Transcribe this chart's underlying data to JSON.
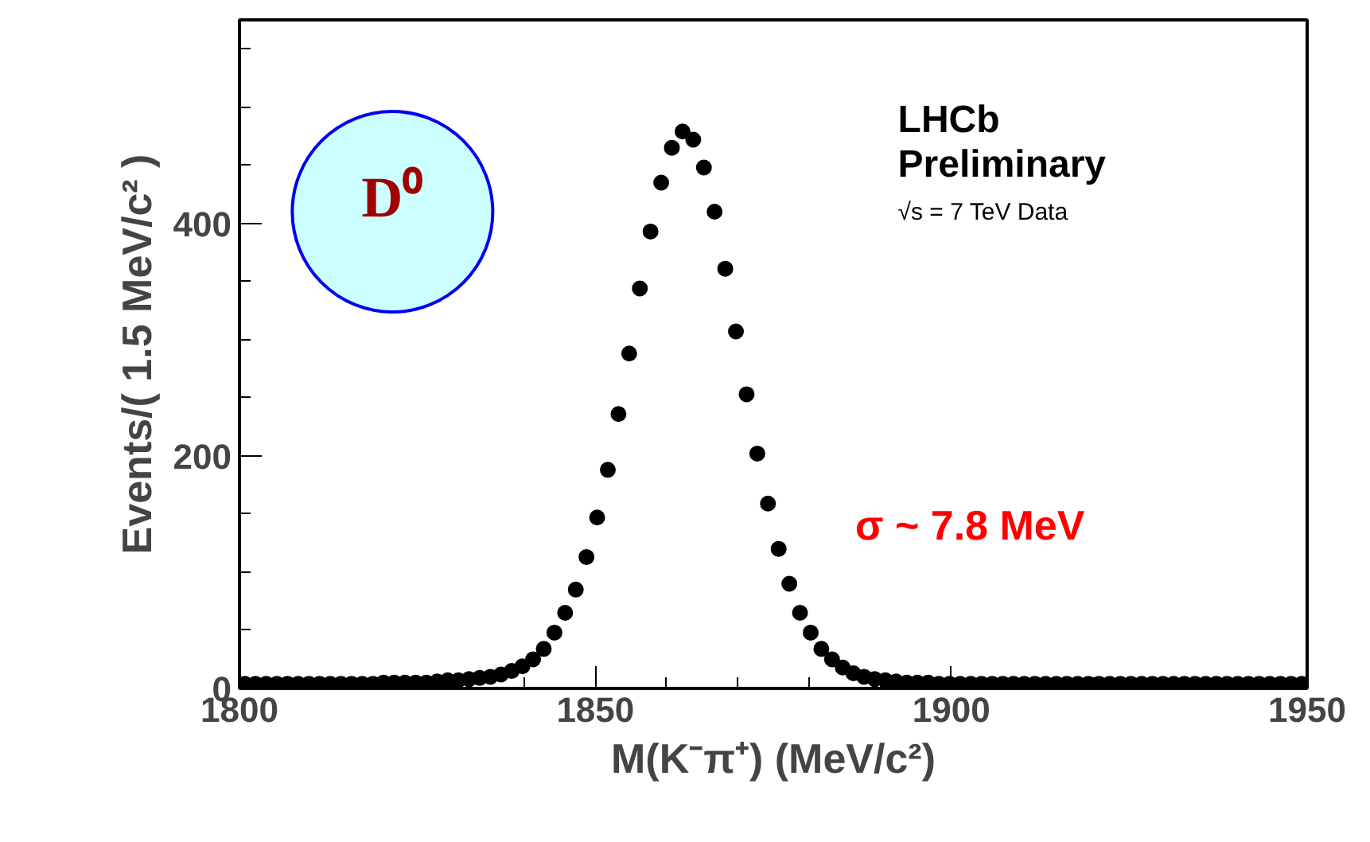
{
  "chart_data": {
    "type": "scatter",
    "xlabel": "M(K⁻π⁺) (MeV/c²)",
    "ylabel": "Events/( 1.5 MeV/c² )",
    "annotations": [
      "LHCb",
      "Preliminary",
      "√s = 7 TeV Data",
      "σ ~ 7.8 MeV",
      "D⁰"
    ],
    "x": [
      1800.75,
      1802.25,
      1803.75,
      1805.25,
      1806.75,
      1808.25,
      1809.75,
      1811.25,
      1812.75,
      1814.25,
      1815.75,
      1817.25,
      1818.75,
      1820.25,
      1821.75,
      1823.25,
      1824.75,
      1826.25,
      1827.75,
      1829.25,
      1830.75,
      1832.25,
      1833.75,
      1835.25,
      1836.75,
      1838.25,
      1839.75,
      1841.25,
      1842.75,
      1844.25,
      1845.75,
      1847.25,
      1848.75,
      1850.25,
      1851.75,
      1853.25,
      1854.75,
      1856.25,
      1857.75,
      1859.25,
      1860.75,
      1862.25,
      1863.75,
      1865.25,
      1866.75,
      1868.25,
      1869.75,
      1871.25,
      1872.75,
      1874.25,
      1875.75,
      1877.25,
      1878.75,
      1880.25,
      1881.75,
      1883.25,
      1884.75,
      1886.25,
      1887.75,
      1889.25,
      1890.75,
      1892.25,
      1893.75,
      1895.25,
      1896.75,
      1898.25,
      1899.75,
      1901.25,
      1902.75,
      1904.25,
      1905.75,
      1907.25,
      1908.75,
      1910.25,
      1911.75,
      1913.25,
      1914.75,
      1916.25,
      1917.75,
      1919.25,
      1920.75,
      1922.25,
      1923.75,
      1925.25,
      1926.75,
      1928.25,
      1929.75,
      1931.25,
      1932.75,
      1934.25,
      1935.75,
      1937.25,
      1938.75,
      1940.25,
      1941.75,
      1943.25,
      1944.75,
      1946.25,
      1947.75,
      1949.25
    ],
    "values": [
      4,
      4,
      4,
      4,
      4,
      4,
      4,
      4,
      4,
      4,
      4,
      4,
      4,
      5,
      5,
      5,
      5,
      5,
      6,
      7,
      7,
      8,
      9,
      10,
      12,
      15,
      19,
      25,
      34,
      48,
      65,
      85,
      113,
      147,
      188,
      236,
      288,
      344,
      393,
      435,
      465,
      479,
      472,
      448,
      410,
      361,
      307,
      253,
      202,
      159,
      120,
      90,
      65,
      48,
      34,
      25,
      18,
      13,
      10,
      8,
      7,
      6,
      5,
      5,
      5,
      4,
      4,
      4,
      4,
      4,
      4,
      4,
      4,
      4,
      4,
      4,
      4,
      4,
      4,
      4,
      4,
      4,
      4,
      4,
      4,
      4,
      4,
      4,
      4,
      4,
      4,
      4,
      4,
      4,
      4,
      4,
      4,
      4,
      4,
      4
    ],
    "color": "#000000",
    "marker": "circle",
    "grid": false,
    "xlim": [
      1800,
      1950
    ],
    "ylim": [
      0,
      575
    ],
    "xticks": [
      1800,
      1850,
      1900,
      1950
    ],
    "yticks": [
      0,
      200,
      400
    ]
  }
}
